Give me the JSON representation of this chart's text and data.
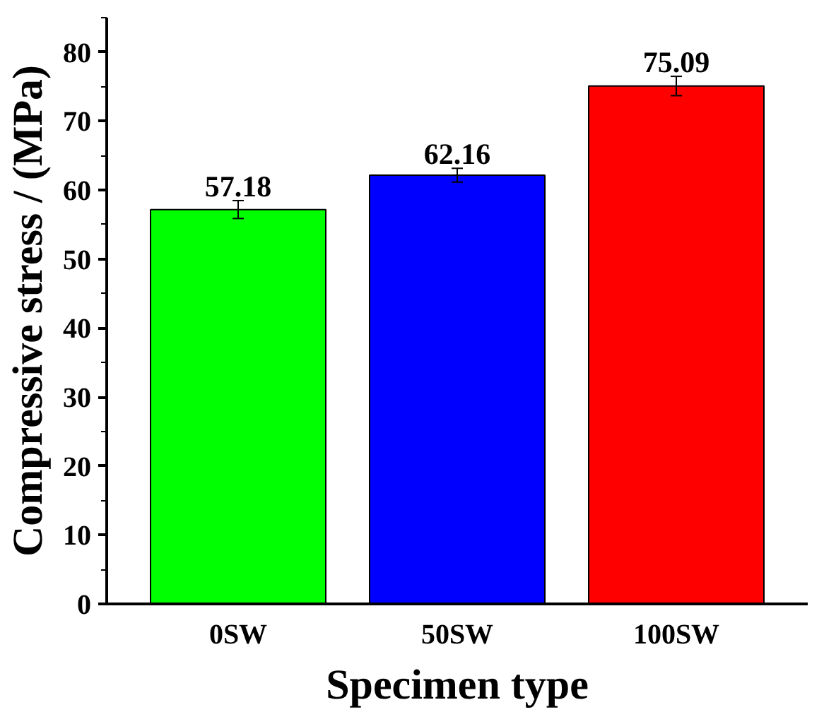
{
  "chart_data": {
    "type": "bar",
    "xlabel": "Specimen type",
    "ylabel": "Compressive stress / (MPa)",
    "categories": [
      "0SW",
      "50SW",
      "100SW"
    ],
    "values": [
      57.18,
      62.16,
      75.09
    ],
    "colors": [
      "#00ff00",
      "#0000ff",
      "#ff0000"
    ],
    "errors": [
      1.3,
      1.0,
      1.4
    ],
    "data_labels": true,
    "ylim": [
      0,
      85
    ],
    "yticks": [
      0,
      10,
      20,
      30,
      40,
      50,
      60,
      70,
      80
    ],
    "grid": false
  }
}
